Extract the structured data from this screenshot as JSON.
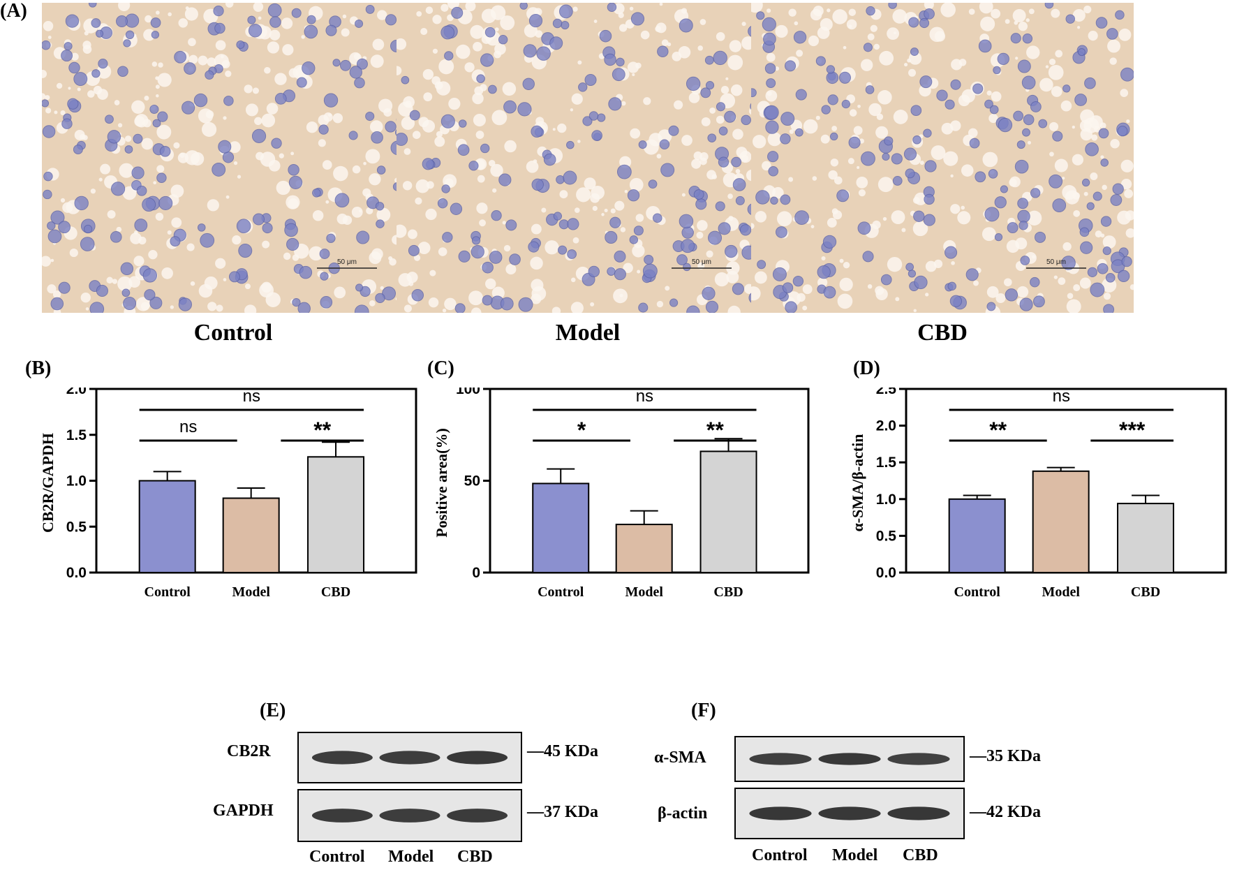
{
  "panel_a": {
    "letter": "(A)",
    "images": [
      {
        "group": "Control",
        "scale_bar": "50 μm"
      },
      {
        "group": "Model",
        "scale_bar": "50 μm"
      },
      {
        "group": "CBD",
        "scale_bar": "50 μm"
      }
    ]
  },
  "colors": {
    "control": "#8b90cf",
    "model": "#dcbca5",
    "cbd": "#d4d4d4",
    "tissue": "#e8d2b8",
    "nucleus": "#7b82c4"
  },
  "chart_data": [
    {
      "letter": "(B)",
      "type": "bar",
      "categories": [
        "Control",
        "Model",
        "CBD"
      ],
      "values": [
        1.0,
        0.81,
        1.26
      ],
      "errors": [
        0.1,
        0.11,
        0.16
      ],
      "ylabel": "CB2R/GAPDH",
      "ylim": [
        0,
        2.0
      ],
      "yticks": [
        "0.0",
        "0.5",
        "1.0",
        "1.5",
        "2.0"
      ],
      "significance": [
        {
          "from": 0,
          "to": 1,
          "label": "ns",
          "level": 1
        },
        {
          "from": 1,
          "to": 2,
          "label": "**",
          "level": 1
        },
        {
          "from": 0,
          "to": 2,
          "label": "ns",
          "level": 2
        }
      ]
    },
    {
      "letter": "(C)",
      "type": "bar",
      "categories": [
        "Control",
        "Model",
        "CBD"
      ],
      "values": [
        48.5,
        26.2,
        66.0
      ],
      "errors": [
        7.9,
        7.4,
        6.9
      ],
      "ylabel": "Positive area(%)",
      "ylim": [
        0,
        100
      ],
      "yticks": [
        "0",
        "50",
        "100"
      ],
      "significance": [
        {
          "from": 0,
          "to": 1,
          "label": "*",
          "level": 1
        },
        {
          "from": 1,
          "to": 2,
          "label": "**",
          "level": 1
        },
        {
          "from": 0,
          "to": 2,
          "label": "ns",
          "level": 2
        }
      ]
    },
    {
      "letter": "(D)",
      "type": "bar",
      "categories": [
        "Control",
        "Model",
        "CBD"
      ],
      "values": [
        1.0,
        1.38,
        0.94
      ],
      "errors": [
        0.05,
        0.05,
        0.11
      ],
      "ylabel": "α-SMA/β-actin",
      "ylim": [
        0,
        2.5
      ],
      "yticks": [
        "0.0",
        "0.5",
        "1.0",
        "1.5",
        "2.0",
        "2.5"
      ],
      "significance": [
        {
          "from": 0,
          "to": 1,
          "label": "**",
          "level": 1
        },
        {
          "from": 1,
          "to": 2,
          "label": "***",
          "level": 1
        },
        {
          "from": 0,
          "to": 2,
          "label": "ns",
          "level": 2
        }
      ]
    }
  ],
  "panel_e": {
    "letter": "(E)",
    "bands": [
      {
        "label": "CB2R",
        "kda": "—45 KDa",
        "intensity": [
          0.8,
          0.8,
          0.9
        ]
      },
      {
        "label": "GAPDH",
        "kda": "—37 KDa",
        "intensity": [
          0.85,
          0.8,
          0.85
        ]
      }
    ],
    "lanes": [
      "Control",
      "Model",
      "CBD"
    ]
  },
  "panel_f": {
    "letter": "(F)",
    "bands": [
      {
        "label": "α-SMA",
        "kda": "—35 KDa",
        "intensity": [
          0.75,
          0.9,
          0.7
        ]
      },
      {
        "label": "β-actin",
        "kda": "—42 KDa",
        "intensity": [
          0.95,
          0.9,
          0.95
        ]
      }
    ],
    "lanes": [
      "Control",
      "Model",
      "CBD"
    ]
  }
}
